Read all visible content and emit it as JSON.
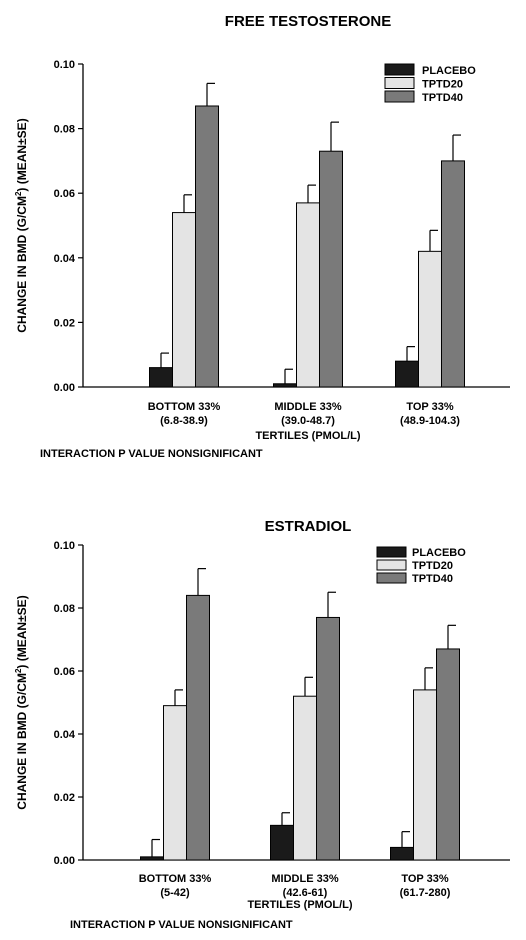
{
  "chart_data": [
    {
      "type": "bar",
      "title": "FREE TESTOSTERONE",
      "ylabel": "CHANGE IN BMD (G/CM²) (MEAN±SE)",
      "ylabel_main": "CHANGE IN BMD (G/CM",
      "ylabel_sup": "2",
      "ylabel_tail": ") (MEAN±SE)",
      "xlabel": "TERTILES (PMOL/L)",
      "note": "INTERACTION P VALUE NONSIGNIFICANT",
      "ylim": [
        0,
        0.1
      ],
      "yticks": [
        "0.00",
        "0.02",
        "0.04",
        "0.06",
        "0.08",
        "0.10"
      ],
      "categories": [
        {
          "line1": "BOTTOM 33%",
          "line2": "(6.8-38.9)"
        },
        {
          "line1": "MIDDLE 33%",
          "line2": "(39.0-48.7)"
        },
        {
          "line1": "TOP 33%",
          "line2": "(48.9-104.3)"
        }
      ],
      "series": [
        {
          "name": "PLACEBO",
          "color": "#1a1a1a",
          "values": [
            0.006,
            0.001,
            0.008
          ],
          "errors": [
            0.0045,
            0.0045,
            0.0045
          ]
        },
        {
          "name": "TPTD20",
          "color": "#e4e4e4",
          "values": [
            0.054,
            0.057,
            0.042
          ],
          "errors": [
            0.0055,
            0.0055,
            0.0065
          ]
        },
        {
          "name": "TPTD40",
          "color": "#7a7a7a",
          "values": [
            0.087,
            0.073,
            0.07
          ],
          "errors": [
            0.007,
            0.009,
            0.008
          ]
        }
      ],
      "grid": false,
      "legend_position": "top-right"
    },
    {
      "type": "bar",
      "title": "ESTRADIOL",
      "ylabel": "CHANGE IN BMD (G/CM²) (MEAN±SE)",
      "ylabel_main": "CHANGE IN BMD (G/CM",
      "ylabel_sup": "2",
      "ylabel_tail": ") (MEAN±SE)",
      "xlabel": "TERTILES (PMOL/L)",
      "note": "INTERACTION P VALUE NONSIGNIFICANT",
      "ylim": [
        0,
        0.1
      ],
      "yticks": [
        "0.00",
        "0.02",
        "0.04",
        "0.06",
        "0.08",
        "0.10"
      ],
      "categories": [
        {
          "line1": "BOTTOM 33%",
          "line2": "(5-42)"
        },
        {
          "line1": "MIDDLE 33%",
          "line2": "(42.6-61)"
        },
        {
          "line1": "TOP 33%",
          "line2": "(61.7-280)"
        }
      ],
      "series": [
        {
          "name": "PLACEBO",
          "color": "#1a1a1a",
          "values": [
            0.001,
            0.011,
            0.004
          ],
          "errors": [
            0.0055,
            0.004,
            0.005
          ]
        },
        {
          "name": "TPTD20",
          "color": "#e4e4e4",
          "values": [
            0.049,
            0.052,
            0.054
          ],
          "errors": [
            0.005,
            0.006,
            0.007
          ]
        },
        {
          "name": "TPTD40",
          "color": "#7a7a7a",
          "values": [
            0.084,
            0.077,
            0.067
          ],
          "errors": [
            0.0085,
            0.008,
            0.0075
          ]
        }
      ],
      "grid": false,
      "legend_position": "top-right"
    }
  ]
}
